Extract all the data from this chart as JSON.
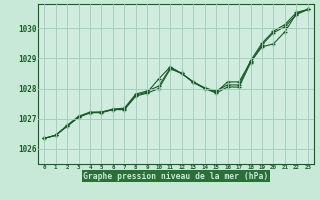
{
  "title": "Graphe pression niveau de la mer (hPa)",
  "bg_color": "#c8e8d8",
  "plot_bg_color": "#d0ecdf",
  "grid_color": "#a0ccb8",
  "line_color": "#1a5c28",
  "marker_color": "#1a5c28",
  "xlabel_bg": "#2a6e38",
  "xlabel_color": "#c8e8d8",
  "xlim": [
    -0.5,
    23.5
  ],
  "ylim": [
    1025.5,
    1030.8
  ],
  "yticks": [
    1026,
    1027,
    1028,
    1029,
    1030
  ],
  "xticks": [
    0,
    1,
    2,
    3,
    4,
    5,
    6,
    7,
    8,
    9,
    10,
    11,
    12,
    13,
    14,
    15,
    16,
    17,
    18,
    19,
    20,
    21,
    22,
    23
  ],
  "series": [
    [
      1026.35,
      1026.45,
      1026.75,
      1027.05,
      1027.2,
      1027.2,
      1027.3,
      1027.3,
      1027.75,
      1027.85,
      1028.0,
      1028.65,
      1028.5,
      1028.2,
      1028.0,
      1027.85,
      1028.05,
      1028.05,
      1028.85,
      1029.45,
      1029.85,
      1030.05,
      1030.45,
      1030.6
    ],
    [
      1026.35,
      1026.45,
      1026.75,
      1027.05,
      1027.2,
      1027.2,
      1027.3,
      1027.3,
      1027.75,
      1027.85,
      1028.3,
      1028.7,
      1028.5,
      1028.2,
      1028.0,
      1027.85,
      1028.2,
      1028.2,
      1028.85,
      1029.35,
      1029.45,
      1029.85,
      1030.45,
      1030.6
    ],
    [
      1026.35,
      1026.45,
      1026.75,
      1027.05,
      1027.2,
      1027.2,
      1027.3,
      1027.3,
      1027.75,
      1027.85,
      1028.0,
      1028.65,
      1028.5,
      1028.2,
      1028.0,
      1027.85,
      1028.05,
      1028.05,
      1028.85,
      1029.45,
      1029.85,
      1030.05,
      1030.45,
      1030.6
    ]
  ]
}
